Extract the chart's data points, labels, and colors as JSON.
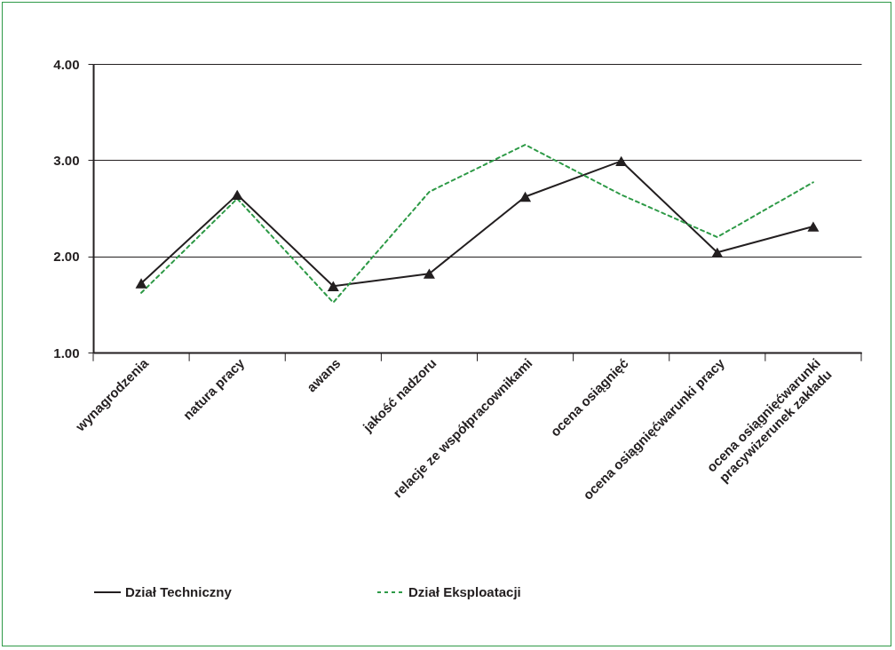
{
  "chart_data": {
    "type": "line",
    "categories": [
      "wynagrodzenia",
      "natura pracy",
      "awans",
      "jakość nadzoru",
      "relacje ze współpracownikami",
      "ocena osiągnięć",
      "ocena osiągnięćwarunki pracy",
      "ocena osiągnięćwarunki\npracywizerunek zakładu"
    ],
    "series": [
      {
        "name": "Dział Techniczny",
        "color": "#231f20",
        "marker": "triangle",
        "line_style": "solid",
        "values": [
          1.72,
          2.64,
          1.69,
          1.82,
          2.62,
          2.99,
          2.04,
          2.31
        ]
      },
      {
        "name": "Dział Eksploatacji",
        "color": "#2e9a47",
        "marker": "none",
        "line_style": "dashed",
        "values": [
          1.62,
          2.6,
          1.52,
          2.67,
          3.16,
          2.64,
          2.2,
          2.77
        ]
      }
    ],
    "ylim": [
      1,
      4
    ],
    "yticks": [
      {
        "value": 1,
        "label": "1.00"
      },
      {
        "value": 2,
        "label": "2.00"
      },
      {
        "value": 3,
        "label": "3.00"
      },
      {
        "value": 4,
        "label": "4.00"
      }
    ],
    "grid": "y",
    "legend": "bottom"
  }
}
